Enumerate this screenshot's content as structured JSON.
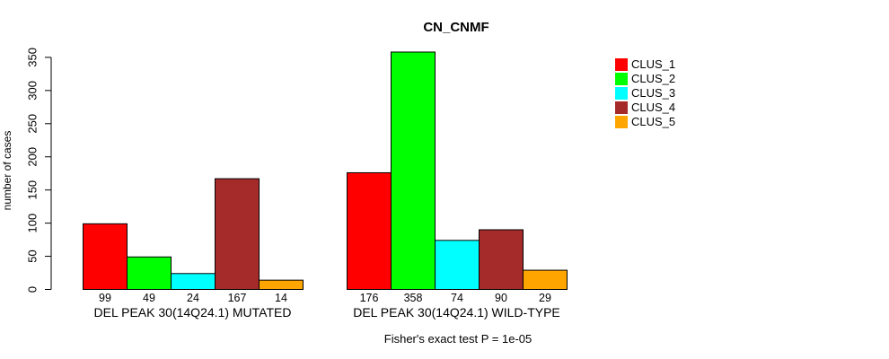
{
  "chart_data": {
    "type": "bar",
    "title": "CN_CNMF",
    "ylabel": "number of cases",
    "xlabel": "",
    "ylim": [
      0,
      350
    ],
    "yticks": [
      0,
      50,
      100,
      150,
      200,
      250,
      300,
      350
    ],
    "grid": false,
    "annotation": "Fisher's exact test P = 1e-05",
    "series_labels": [
      "CLUS_1",
      "CLUS_2",
      "CLUS_3",
      "CLUS_4",
      "CLUS_5"
    ],
    "legend": {
      "position": "right",
      "entries": [
        {
          "label": "CLUS_1",
          "color": "#FF0000"
        },
        {
          "label": "CLUS_2",
          "color": "#00FF00"
        },
        {
          "label": "CLUS_3",
          "color": "#00FFFF"
        },
        {
          "label": "CLUS_4",
          "color": "#A52A2A"
        },
        {
          "label": "CLUS_5",
          "color": "#FFA500"
        }
      ]
    },
    "groups": [
      {
        "label": "DEL PEAK 30(14Q24.1) MUTATED",
        "values": [
          99,
          49,
          24,
          167,
          14
        ]
      },
      {
        "label": "DEL PEAK 30(14Q24.1) WILD-TYPE",
        "values": [
          176,
          358,
          74,
          90,
          29
        ]
      }
    ]
  }
}
